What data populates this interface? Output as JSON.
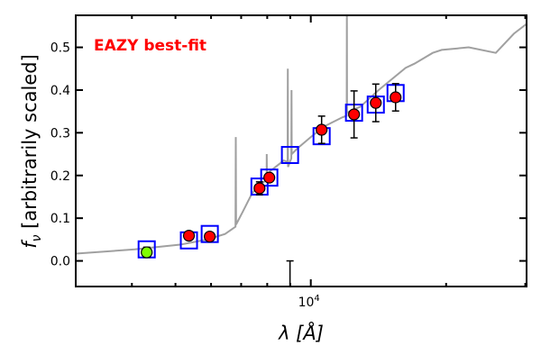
{
  "chart_data": {
    "type": "scatter",
    "title": "EAZY best-fit",
    "title_color": "#ff0000",
    "xlabel": "λ [Å]",
    "ylabel_main": "f",
    "ylabel_sub": "ν",
    "ylabel_rest": " [arbitrarily scaled]",
    "xscale": "log",
    "xlim": [
      3000,
      30200
    ],
    "ylim": [
      -0.06,
      0.575
    ],
    "yticks": [
      0.0,
      0.1,
      0.2,
      0.3,
      0.4,
      0.5
    ],
    "ytick_labels": [
      "0.0",
      "0.1",
      "0.2",
      "0.3",
      "0.4",
      "0.5"
    ],
    "xticks_major": [
      10000
    ],
    "xtick_labels": [
      {
        "base": "10",
        "exp": "4"
      }
    ],
    "xticks_minor": [
      4000,
      5000,
      6000,
      7000,
      8000,
      9000,
      20000,
      30000
    ],
    "grid": false,
    "series": [
      {
        "name": "best-fit template spectrum",
        "type": "line",
        "color": "#a0a0a0",
        "points": [
          [
            3000,
            0.017
          ],
          [
            4060,
            0.027
          ],
          [
            5120,
            0.038
          ],
          [
            5875,
            0.05
          ],
          [
            6445,
            0.063
          ],
          [
            6800,
            0.08
          ],
          [
            6810,
            0.29
          ],
          [
            6820,
            0.085
          ],
          [
            7065,
            0.116
          ],
          [
            7400,
            0.158
          ],
          [
            7650,
            0.175
          ],
          [
            7760,
            0.18
          ],
          [
            7975,
            0.19
          ],
          [
            7980,
            0.25
          ],
          [
            7990,
            0.19
          ],
          [
            8120,
            0.21
          ],
          [
            8705,
            0.235
          ],
          [
            8880,
            0.232
          ],
          [
            8890,
            0.45
          ],
          [
            8900,
            0.22
          ],
          [
            9050,
            0.24
          ],
          [
            9060,
            0.4
          ],
          [
            9070,
            0.25
          ],
          [
            9330,
            0.263
          ],
          [
            10000,
            0.29
          ],
          [
            10720,
            0.315
          ],
          [
            11750,
            0.336
          ],
          [
            12020,
            0.34
          ],
          [
            12030,
            0.6
          ],
          [
            12040,
            0.347
          ],
          [
            12890,
            0.361
          ],
          [
            14150,
            0.4
          ],
          [
            16250,
            0.452
          ],
          [
            17020,
            0.462
          ],
          [
            18670,
            0.487
          ],
          [
            19550,
            0.494
          ],
          [
            22450,
            0.5
          ],
          [
            25800,
            0.487
          ],
          [
            28300,
            0.532
          ],
          [
            30200,
            0.555
          ]
        ]
      },
      {
        "name": "template synthetic photometry",
        "type": "square-marker",
        "color": "#0000ff",
        "points": [
          [
            4315,
            0.027
          ],
          [
            5357,
            0.048
          ],
          [
            5960,
            0.063
          ],
          [
            7690,
            0.174
          ],
          [
            8085,
            0.195
          ],
          [
            8990,
            0.248
          ],
          [
            10570,
            0.292
          ],
          [
            12480,
            0.347
          ],
          [
            13950,
            0.366
          ],
          [
            15440,
            0.393
          ]
        ]
      },
      {
        "name": "observed photometry",
        "type": "errorbar",
        "color": "#ff0000",
        "points": [
          [
            5357,
            0.059,
            0.004
          ],
          [
            5960,
            0.057,
            0.004
          ],
          [
            7690,
            0.17,
            0.015
          ],
          [
            8085,
            0.195,
            0.006
          ],
          [
            10570,
            0.307,
            0.032
          ],
          [
            12480,
            0.343,
            0.055
          ],
          [
            13950,
            0.37,
            0.044
          ],
          [
            15440,
            0.383,
            0.032
          ]
        ]
      },
      {
        "name": "observed photometry (flagged)",
        "type": "errorbar",
        "color": "#7fff00",
        "points": [
          [
            4315,
            0.02,
            0.012
          ]
        ]
      },
      {
        "name": "non-detection",
        "type": "errorbar-only",
        "color": "#000000",
        "points": [
          [
            8990,
            -0.05,
            0.05
          ]
        ]
      }
    ]
  }
}
